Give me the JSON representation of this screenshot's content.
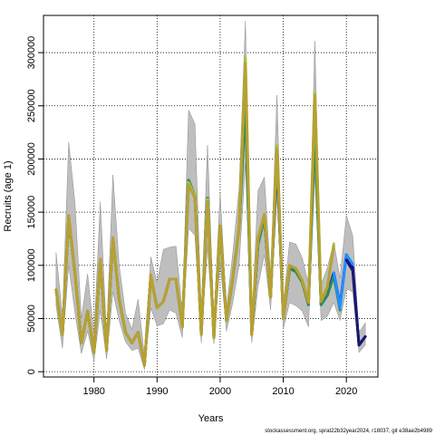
{
  "chart_data": {
    "type": "line",
    "xlabel": "Years",
    "ylabel": "Recruits (age 1)",
    "xlim": [
      1972,
      2025
    ],
    "ylim": [
      -5000,
      335000
    ],
    "x_ticks": [
      1980,
      1990,
      2000,
      2010,
      2020
    ],
    "y_ticks": [
      0,
      50000,
      100000,
      150000,
      200000,
      250000,
      300000
    ],
    "grid": true,
    "grid_style": "dotted",
    "legend": "none",
    "series": [
      {
        "color": "#0000CD",
        "x": [
          1974,
          1975,
          1976,
          1977,
          1978,
          1979,
          1980,
          1981,
          1982,
          1983,
          1984,
          1985,
          1986,
          1987,
          1988,
          1989,
          1990,
          1991,
          1992,
          1993,
          1994,
          1995,
          1996,
          1997,
          1998,
          1999,
          2000,
          2001,
          2002,
          2003,
          2004,
          2005,
          2006,
          2007,
          2008,
          2009,
          2010,
          2011,
          2012,
          2013,
          2014,
          2015,
          2016,
          2017,
          2018,
          2019,
          2020,
          2021,
          2022,
          2023
        ],
        "y": [
          77000,
          35000,
          145000,
          92000,
          27000,
          57000,
          18000,
          105000,
          20000,
          125000,
          68000,
          37000,
          27000,
          37000,
          6000,
          90000,
          60000,
          66000,
          87000,
          87000,
          42000,
          180000,
          165000,
          35000,
          163000,
          32000,
          137000,
          48000,
          88000,
          135000,
          260000,
          35000,
          120000,
          145000,
          70000,
          200000,
          50000,
          97000,
          95000,
          85000,
          63000,
          237000,
          63000,
          72000,
          93000,
          62000,
          110000,
          98000,
          25000,
          33000
        ],
        "lower": [
          62000,
          22000,
          100000,
          55000,
          17000,
          38000,
          10000,
          58000,
          12000,
          75000,
          48000,
          28000,
          20000,
          22000,
          2000,
          60000,
          43000,
          45000,
          58000,
          55000,
          32000,
          135000,
          128000,
          27000,
          118000,
          26000,
          103000,
          38000,
          65000,
          100000,
          195000,
          27000,
          80000,
          110000,
          58000,
          165000,
          40000,
          65000,
          62000,
          57000,
          42000,
          185000,
          48000,
          52000,
          65000,
          48000,
          78000,
          75000,
          18000,
          25000
        ],
        "upper": [
          112000,
          52000,
          216000,
          158000,
          50000,
          92000,
          35000,
          160000,
          35000,
          185000,
          100000,
          55000,
          40000,
          68000,
          15000,
          108000,
          84000,
          115000,
          117000,
          118000,
          56000,
          246000,
          233000,
          57000,
          213000,
          48000,
          168000,
          60000,
          112000,
          172000,
          330000,
          48000,
          170000,
          183000,
          90000,
          260000,
          64000,
          122000,
          120000,
          107000,
          82000,
          311000,
          82000,
          98000,
          122000,
          88000,
          147000,
          128000,
          37000,
          46000
        ]
      },
      {
        "color": "#2E8B57",
        "x": [
          1974,
          1975,
          1976,
          1977,
          1978,
          1979,
          1980,
          1981,
          1982,
          1983,
          1984,
          1985,
          1986,
          1987,
          1988,
          1989,
          1990,
          1991,
          1992,
          1993,
          1994,
          1995,
          1996,
          1997,
          1998,
          1999,
          2000,
          2001,
          2002,
          2003,
          2004,
          2005,
          2006,
          2007,
          2008,
          2009,
          2010,
          2011,
          2012,
          2013,
          2014,
          2015,
          2016,
          2017,
          2018,
          2019
        ],
        "y": [
          77000,
          35000,
          145000,
          92000,
          27000,
          57000,
          18000,
          105000,
          20000,
          125000,
          68000,
          37000,
          27000,
          37000,
          6000,
          90000,
          60000,
          66000,
          87000,
          87000,
          42000,
          180000,
          165000,
          35000,
          163000,
          32000,
          137000,
          48000,
          88000,
          135000,
          250000,
          35000,
          120000,
          145000,
          70000,
          205000,
          50000,
          97000,
          94000,
          84000,
          63000,
          225000,
          63000,
          72000,
          90000,
          58000
        ]
      },
      {
        "color": "#9ACD32",
        "x": [
          1974,
          1975,
          1976,
          1977,
          1978,
          1979,
          1980,
          1981,
          1982,
          1983,
          1984,
          1985,
          1986,
          1987,
          1988,
          1989,
          1990,
          1991,
          1992,
          1993,
          1994,
          1995,
          1996,
          1997,
          1998,
          1999,
          2000,
          2001,
          2002,
          2003,
          2004,
          2005,
          2006,
          2007,
          2008,
          2009,
          2010,
          2011,
          2012,
          2013,
          2014,
          2015,
          2016,
          2017,
          2018
        ],
        "y": [
          77000,
          35000,
          145000,
          92000,
          27000,
          57000,
          18000,
          105000,
          20000,
          125000,
          68000,
          37000,
          27000,
          37000,
          6000,
          90000,
          60000,
          66000,
          87000,
          87000,
          42000,
          178000,
          165000,
          35000,
          162000,
          32000,
          137000,
          48000,
          88000,
          135000,
          295000,
          35000,
          125000,
          148000,
          70000,
          213000,
          50000,
          100000,
          97000,
          86000,
          65000,
          262000,
          66000,
          80000,
          120000
        ]
      },
      {
        "color": "#B8A030",
        "x": [
          1974,
          1975,
          1976,
          1977,
          1978,
          1979,
          1980,
          1981,
          1982,
          1983,
          1984,
          1985,
          1986,
          1987,
          1988,
          1989,
          1990,
          1991,
          1992,
          1993,
          1994,
          1995,
          1996,
          1997,
          1998,
          1999,
          2000,
          2001,
          2002,
          2003,
          2004,
          2005,
          2006,
          2007,
          2008,
          2009,
          2010,
          2011,
          2012,
          2013,
          2014,
          2015,
          2016,
          2017,
          2018
        ],
        "y": [
          77000,
          35000,
          147000,
          92000,
          27000,
          57000,
          18000,
          106000,
          20000,
          126000,
          68000,
          37000,
          27000,
          37000,
          6000,
          91000,
          60000,
          66000,
          87000,
          87000,
          42000,
          176000,
          163000,
          35000,
          160000,
          32000,
          137000,
          48000,
          88000,
          135000,
          290000,
          35000,
          125000,
          148000,
          70000,
          210000,
          50000,
          100000,
          97000,
          86000,
          65000,
          260000,
          66000,
          80000,
          118000
        ]
      },
      {
        "color": "#1E90FF",
        "x": [
          2018,
          2019,
          2020,
          2021
        ],
        "y": [
          93000,
          60000,
          110000,
          101000
        ]
      },
      {
        "color": "#191970",
        "x": [
          2020,
          2021,
          2022,
          2023
        ],
        "y": [
          105000,
          95000,
          25000,
          33000
        ]
      }
    ]
  },
  "footer": {
    "text": "stockassessment.org, sprat22b32year2024, r18037, git e38ae2b4989"
  }
}
